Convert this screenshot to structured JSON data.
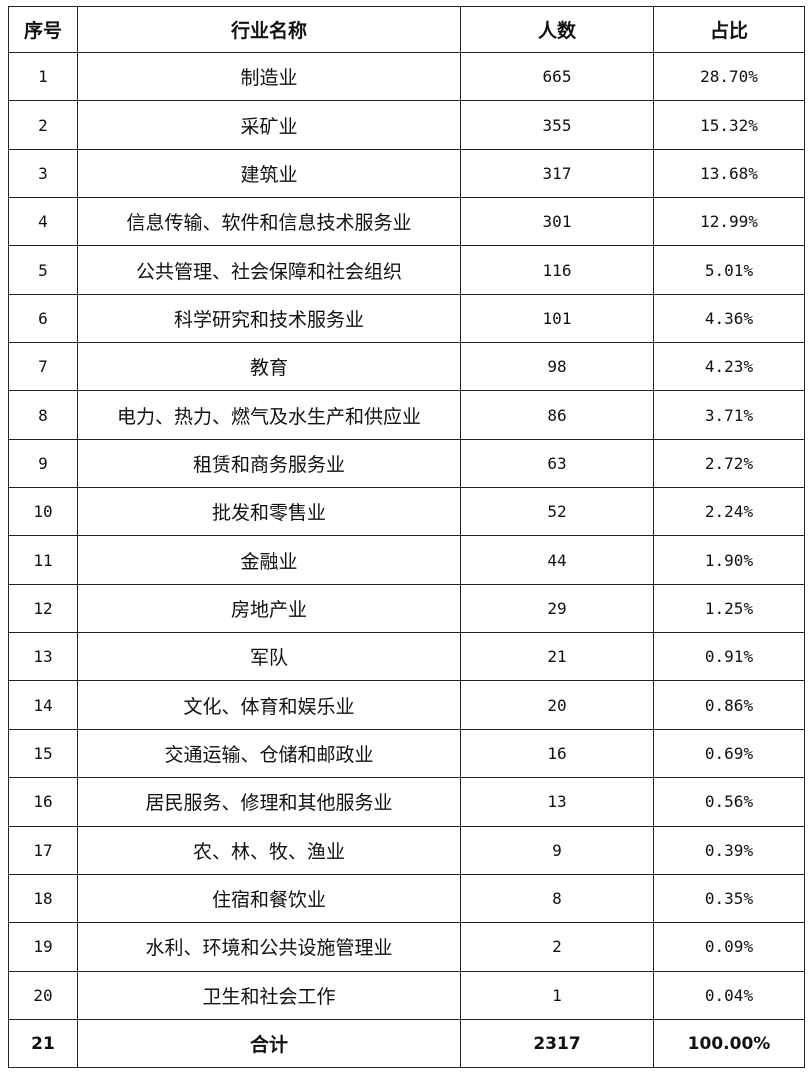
{
  "header": {
    "seq": "序号",
    "industry": "行业名称",
    "count": "人数",
    "ratio": "占比"
  },
  "rows": [
    {
      "seq": "1",
      "industry": "制造业",
      "count": "665",
      "ratio": "28.70%"
    },
    {
      "seq": "2",
      "industry": "采矿业",
      "count": "355",
      "ratio": "15.32%"
    },
    {
      "seq": "3",
      "industry": "建筑业",
      "count": "317",
      "ratio": "13.68%"
    },
    {
      "seq": "4",
      "industry": "信息传输、软件和信息技术服务业",
      "count": "301",
      "ratio": "12.99%"
    },
    {
      "seq": "5",
      "industry": "公共管理、社会保障和社会组织",
      "count": "116",
      "ratio": "5.01%"
    },
    {
      "seq": "6",
      "industry": "科学研究和技术服务业",
      "count": "101",
      "ratio": "4.36%"
    },
    {
      "seq": "7",
      "industry": "教育",
      "count": "98",
      "ratio": "4.23%"
    },
    {
      "seq": "8",
      "industry": "电力、热力、燃气及水生产和供应业",
      "count": "86",
      "ratio": "3.71%"
    },
    {
      "seq": "9",
      "industry": "租赁和商务服务业",
      "count": "63",
      "ratio": "2.72%"
    },
    {
      "seq": "10",
      "industry": "批发和零售业",
      "count": "52",
      "ratio": "2.24%"
    },
    {
      "seq": "11",
      "industry": "金融业",
      "count": "44",
      "ratio": "1.90%"
    },
    {
      "seq": "12",
      "industry": "房地产业",
      "count": "29",
      "ratio": "1.25%"
    },
    {
      "seq": "13",
      "industry": "军队",
      "count": "21",
      "ratio": "0.91%"
    },
    {
      "seq": "14",
      "industry": "文化、体育和娱乐业",
      "count": "20",
      "ratio": "0.86%"
    },
    {
      "seq": "15",
      "industry": "交通运输、仓储和邮政业",
      "count": "16",
      "ratio": "0.69%"
    },
    {
      "seq": "16",
      "industry": "居民服务、修理和其他服务业",
      "count": "13",
      "ratio": "0.56%"
    },
    {
      "seq": "17",
      "industry": "农、林、牧、渔业",
      "count": "9",
      "ratio": "0.39%"
    },
    {
      "seq": "18",
      "industry": "住宿和餐饮业",
      "count": "8",
      "ratio": "0.35%"
    },
    {
      "seq": "19",
      "industry": "水利、环境和公共设施管理业",
      "count": "2",
      "ratio": "0.09%"
    },
    {
      "seq": "20",
      "industry": "卫生和社会工作",
      "count": "1",
      "ratio": "0.04%"
    }
  ],
  "total": {
    "seq": "21",
    "industry": "合计",
    "count": "2317",
    "ratio": "100.00%"
  }
}
